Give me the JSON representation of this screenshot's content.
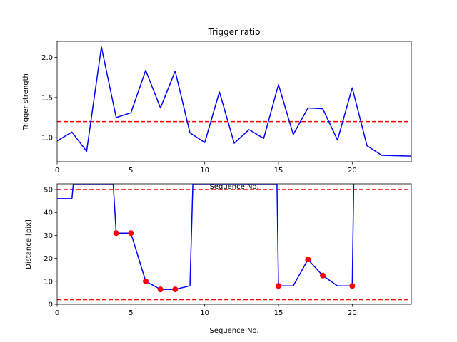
{
  "chart_data": [
    {
      "type": "line",
      "title": "Trigger ratio",
      "xlabel": "Sequence No.",
      "ylabel": "Trigger strength",
      "xlim": [
        0,
        24
      ],
      "ylim": [
        0.7,
        2.2
      ],
      "xticks": [
        0,
        5,
        10,
        15,
        20
      ],
      "yticks": [
        1.0,
        1.5,
        2.0
      ],
      "xtick_labels": [
        "0",
        "5",
        "10",
        "15",
        "20"
      ],
      "ytick_labels": [
        "1.0",
        "1.5",
        "2.0"
      ],
      "grid": false,
      "series": [
        {
          "color": "#0000ff",
          "x": [
            0,
            1,
            2,
            3,
            4,
            5,
            6,
            7,
            8,
            9,
            10,
            11,
            12,
            13,
            14,
            15,
            16,
            17,
            18,
            19,
            20,
            21,
            22,
            24
          ],
          "y": [
            0.96,
            1.07,
            0.83,
            2.13,
            1.25,
            1.31,
            1.84,
            1.37,
            1.83,
            1.06,
            0.94,
            1.57,
            0.93,
            1.1,
            0.99,
            1.66,
            1.04,
            1.37,
            1.36,
            0.97,
            1.62,
            0.9,
            0.78,
            0.77
          ]
        }
      ],
      "hlines": [
        {
          "y": 1.2,
          "color": "#ff0000",
          "style": "dashed"
        }
      ]
    },
    {
      "type": "line",
      "title": "",
      "xlabel": "Sequence No.",
      "ylabel": "Distance [pix]",
      "xlim": [
        0,
        24
      ],
      "ylim": [
        0,
        52.5
      ],
      "xticks": [
        0,
        5,
        10,
        15,
        20
      ],
      "yticks": [
        0,
        10,
        20,
        30,
        40,
        50
      ],
      "xtick_labels": [
        "0",
        "5",
        "10",
        "15",
        "20"
      ],
      "ytick_labels": [
        "0",
        "10",
        "20",
        "30",
        "40",
        "50"
      ],
      "grid": false,
      "series": [
        {
          "color": "#0000ff",
          "x": [
            0,
            1,
            1.1,
            3.8,
            4,
            5,
            6,
            7,
            8,
            9,
            9.2,
            14.9,
            15,
            16,
            17,
            18,
            19,
            20,
            20.1
          ],
          "y": [
            46,
            46,
            52.5,
            52.5,
            31,
            31,
            10,
            6.5,
            6.5,
            8,
            52.5,
            52.5,
            8,
            8,
            19.5,
            12.5,
            8,
            8,
            52.5
          ]
        },
        {
          "color": "#ff0000",
          "marker": "circle",
          "x": [
            4,
            5,
            6,
            7,
            8,
            15,
            17,
            18,
            20
          ],
          "y": [
            31,
            31,
            10,
            6.5,
            6.5,
            8,
            19.5,
            12.5,
            8
          ]
        }
      ],
      "hlines": [
        {
          "y": 50,
          "color": "#ff0000",
          "style": "dashed"
        },
        {
          "y": 2,
          "color": "#ff0000",
          "style": "dashed"
        }
      ]
    }
  ]
}
